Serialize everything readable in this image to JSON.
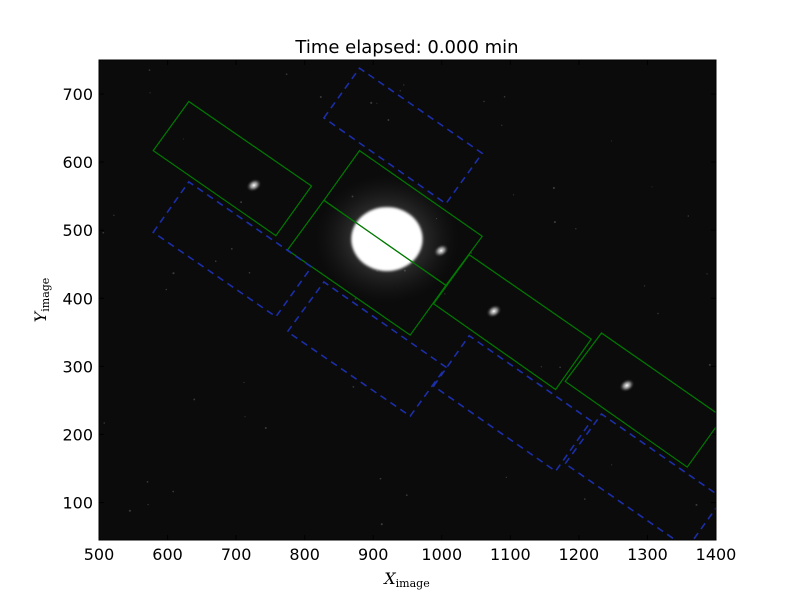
{
  "chart_data": {
    "type": "scatter",
    "title": "Time elapsed: 0.000 min",
    "xlabel": {
      "main": "X",
      "sub": "image"
    },
    "ylabel": {
      "main": "Y",
      "sub": "image"
    },
    "xlim": [
      500,
      1400
    ],
    "ylim": [
      45,
      750
    ],
    "xticks": [
      500,
      600,
      700,
      800,
      900,
      1000,
      1100,
      1200,
      1300,
      1400
    ],
    "yticks": [
      100,
      200,
      300,
      400,
      500,
      600,
      700
    ],
    "background": "#0b0b0b",
    "grid": false,
    "sources": [
      {
        "name": "bright",
        "x": 920,
        "y": 487,
        "rx": 52,
        "ry": 47
      },
      {
        "name": "star-1",
        "x": 726,
        "y": 566
      },
      {
        "name": "star-2",
        "x": 999,
        "y": 470
      },
      {
        "name": "star-3",
        "x": 1076,
        "y": 381
      },
      {
        "name": "star-4",
        "x": 1270,
        "y": 272
      }
    ],
    "apertures": [
      {
        "type": "source",
        "color": "#007a00",
        "style": "solid",
        "corners": [
          [
            579,
            617
          ],
          [
            631,
            689
          ],
          [
            810,
            565
          ],
          [
            758,
            492
          ]
        ]
      },
      {
        "type": "source",
        "color": "#007a00",
        "style": "solid",
        "corners": [
          [
            775,
            471
          ],
          [
            828,
            544
          ],
          [
            1006,
            419
          ],
          [
            954,
            346
          ]
        ]
      },
      {
        "type": "source",
        "color": "#007a00",
        "style": "solid",
        "corners": [
          [
            828,
            544
          ],
          [
            880,
            617
          ],
          [
            1059,
            491
          ],
          [
            1006,
            419
          ]
        ]
      },
      {
        "type": "source",
        "color": "#007a00",
        "style": "solid",
        "corners": [
          [
            988,
            392
          ],
          [
            1040,
            464
          ],
          [
            1218,
            340
          ],
          [
            1166,
            266
          ]
        ]
      },
      {
        "type": "source",
        "color": "#007a00",
        "style": "solid",
        "corners": [
          [
            1180,
            278
          ],
          [
            1233,
            349
          ],
          [
            1410,
            225
          ],
          [
            1358,
            152
          ]
        ]
      },
      {
        "type": "background",
        "color": "#1c2ea8",
        "style": "dashed",
        "corners": [
          [
            579,
            497
          ],
          [
            631,
            571
          ],
          [
            810,
            446
          ],
          [
            758,
            373
          ]
        ]
      },
      {
        "type": "background",
        "color": "#1c2ea8",
        "style": "dashed",
        "corners": [
          [
            828,
            665
          ],
          [
            880,
            738
          ],
          [
            1059,
            613
          ],
          [
            1006,
            539
          ]
        ]
      },
      {
        "type": "background",
        "color": "#1c2ea8",
        "style": "dashed",
        "corners": [
          [
            775,
            351
          ],
          [
            828,
            424
          ],
          [
            1006,
            299
          ],
          [
            954,
            227
          ]
        ]
      },
      {
        "type": "background",
        "color": "#1c2ea8",
        "style": "dashed",
        "corners": [
          [
            988,
            271
          ],
          [
            1040,
            345
          ],
          [
            1218,
            220
          ],
          [
            1166,
            146
          ]
        ]
      },
      {
        "type": "background",
        "color": "#1c2ea8",
        "style": "dashed",
        "corners": [
          [
            1180,
            157
          ],
          [
            1233,
            230
          ],
          [
            1410,
            106
          ],
          [
            1358,
            33
          ]
        ]
      }
    ]
  }
}
